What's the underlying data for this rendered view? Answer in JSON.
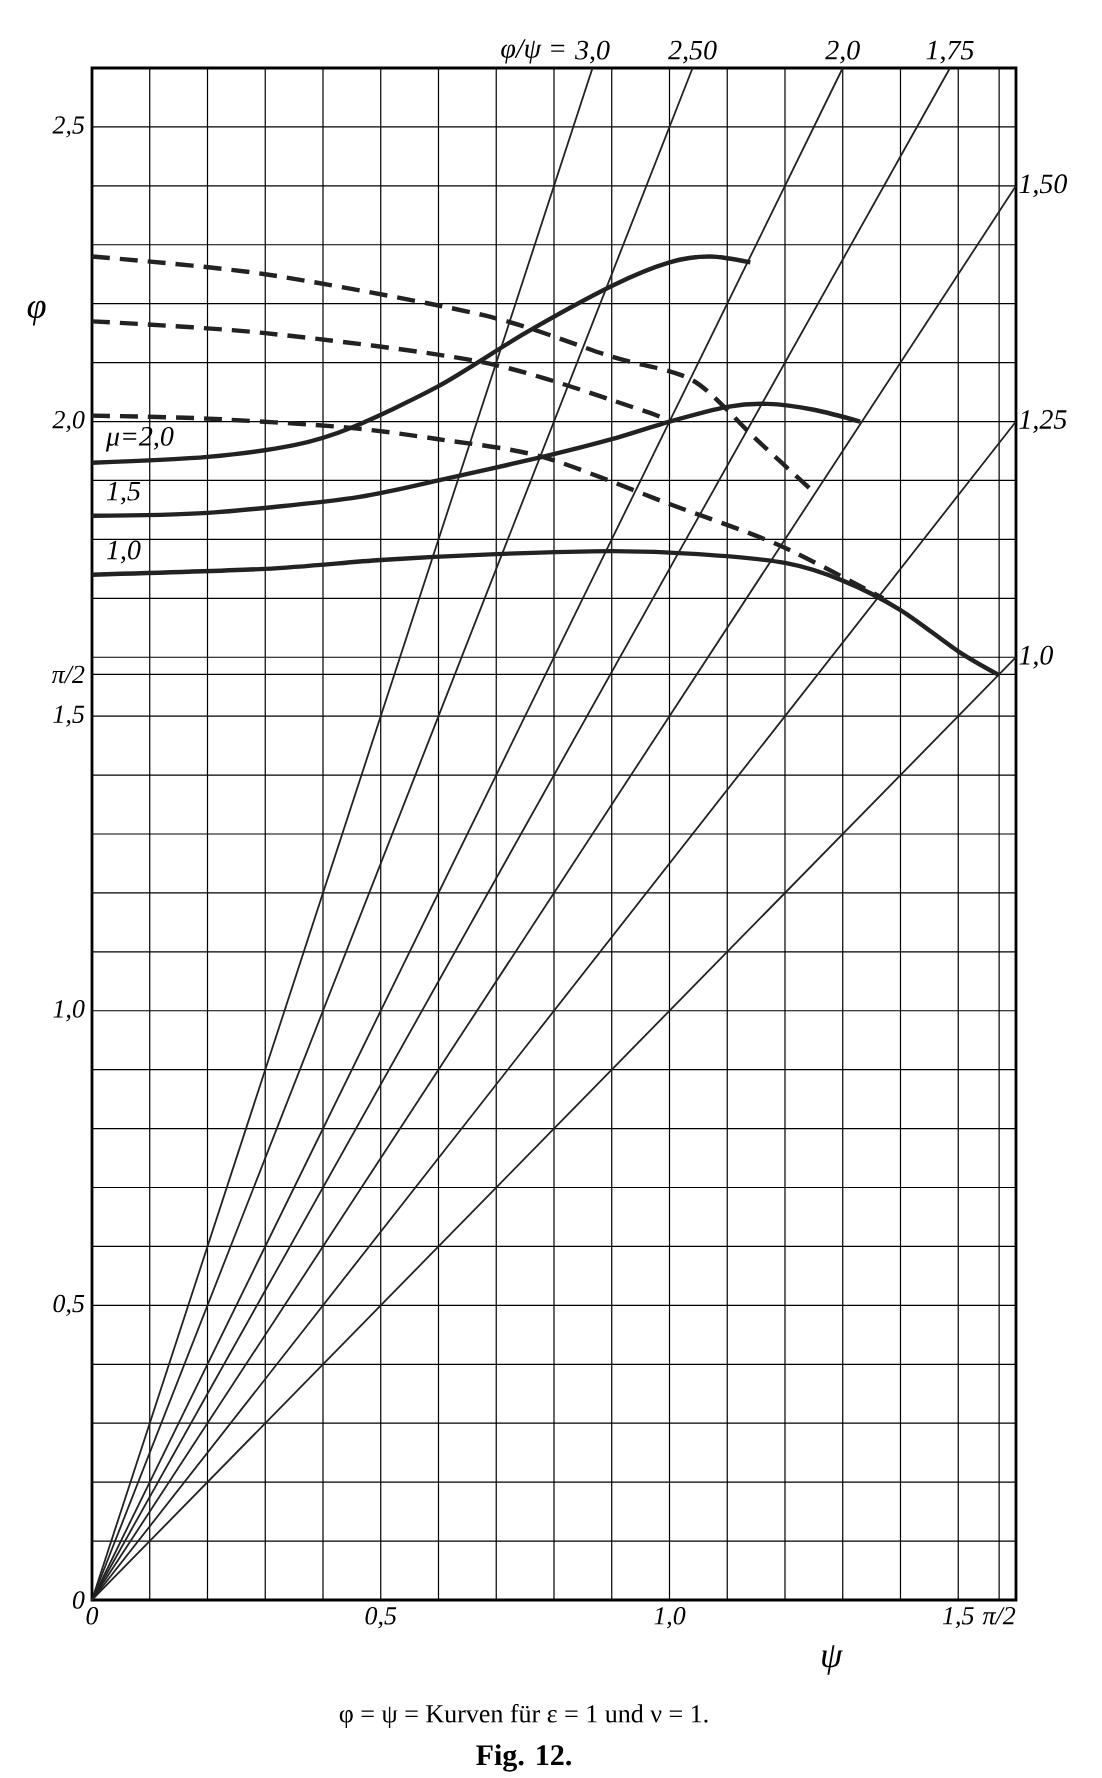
{
  "chart_data": {
    "type": "line",
    "legend_title": "φ/ψ =",
    "xlabel": "ψ",
    "ylabel": "φ",
    "xlim": [
      0,
      1.6
    ],
    "ylim": [
      0,
      2.6
    ],
    "grid": true,
    "xticks": [
      0,
      {
        "value": 0.1,
        "label": null
      },
      {
        "value": 0.2,
        "label": null
      },
      {
        "value": 0.3,
        "label": null
      },
      {
        "value": 0.4,
        "label": null
      },
      {
        "value": 0.5,
        "label": "0,5"
      },
      {
        "value": 0.6,
        "label": null
      },
      {
        "value": 0.7,
        "label": null
      },
      {
        "value": 0.8,
        "label": null
      },
      {
        "value": 0.9,
        "label": null
      },
      {
        "value": 1.0,
        "label": "1,0"
      },
      {
        "value": 1.1,
        "label": null
      },
      {
        "value": 1.2,
        "label": null
      },
      {
        "value": 1.3,
        "label": null
      },
      {
        "value": 1.4,
        "label": null
      },
      {
        "value": 1.5,
        "label": "1,5"
      },
      {
        "value": 1.5708,
        "label": "π/2"
      }
    ],
    "yticks": [
      0,
      {
        "value": 0.1,
        "label": null
      },
      {
        "value": 0.2,
        "label": null
      },
      {
        "value": 0.3,
        "label": null
      },
      {
        "value": 0.4,
        "label": null
      },
      {
        "value": 0.5,
        "label": "0,5"
      },
      {
        "value": 0.6,
        "label": null
      },
      {
        "value": 0.7,
        "label": null
      },
      {
        "value": 0.8,
        "label": null
      },
      {
        "value": 0.9,
        "label": null
      },
      {
        "value": 1.0,
        "label": "1,0"
      },
      {
        "value": 1.1,
        "label": null
      },
      {
        "value": 1.2,
        "label": null
      },
      {
        "value": 1.3,
        "label": null
      },
      {
        "value": 1.4,
        "label": null
      },
      {
        "value": 1.5,
        "label": "1,5"
      },
      {
        "value": 1.5708,
        "label": "π/2"
      },
      {
        "value": 1.6,
        "label": null
      },
      {
        "value": 1.7,
        "label": null
      },
      {
        "value": 1.8,
        "label": null
      },
      {
        "value": 1.9,
        "label": null
      },
      {
        "value": 2.0,
        "label": "2,0"
      },
      {
        "value": 2.1,
        "label": null
      },
      {
        "value": 2.2,
        "label": null
      },
      {
        "value": 2.3,
        "label": null
      },
      {
        "value": 2.4,
        "label": null
      },
      {
        "value": 2.5,
        "label": "2,5"
      }
    ],
    "series": [
      {
        "name": "3,0",
        "color": "#222222",
        "x": [
          0,
          0.8667
        ],
        "values": [
          0,
          2.6
        ]
      },
      {
        "name": "2,50",
        "color": "#222222",
        "x": [
          0,
          1.04
        ],
        "values": [
          0,
          2.6
        ]
      },
      {
        "name": "2,0",
        "color": "#222222",
        "x": [
          0,
          1.3
        ],
        "values": [
          0,
          2.6
        ]
      },
      {
        "name": "1,75",
        "color": "#222222",
        "x": [
          0,
          1.4857
        ],
        "values": [
          0,
          2.6
        ]
      },
      {
        "name": "1,50",
        "color": "#222222",
        "x": [
          0,
          1.6
        ],
        "values": [
          0,
          2.4
        ]
      },
      {
        "name": "1,25",
        "color": "#222222",
        "x": [
          0,
          1.6
        ],
        "values": [
          0,
          2.0
        ]
      },
      {
        "name": "1,0",
        "color": "#222222",
        "x": [
          0,
          1.6
        ],
        "values": [
          0,
          1.6
        ]
      },
      {
        "name": "μ=2,0",
        "color": "#222222",
        "x": [
          0,
          0.2,
          0.35,
          0.45,
          0.6,
          0.75,
          0.9,
          1.0,
          1.07,
          1.14
        ],
        "values": [
          1.93,
          1.94,
          1.96,
          1.99,
          2.06,
          2.15,
          2.23,
          2.27,
          2.28,
          2.27
        ]
      },
      {
        "name": "1,5",
        "color": "#222222",
        "x": [
          0,
          0.2,
          0.45,
          0.6,
          0.78,
          0.9,
          1.0,
          1.1,
          1.17,
          1.25,
          1.33
        ],
        "values": [
          1.84,
          1.845,
          1.87,
          1.9,
          1.94,
          1.97,
          2.0,
          2.025,
          2.03,
          2.02,
          2.0
        ]
      },
      {
        "name": "1,0",
        "color": "#222222",
        "x": [
          0,
          0.3,
          0.5,
          0.7,
          0.9,
          1.05,
          1.2,
          1.3,
          1.4,
          1.5,
          1.57
        ],
        "values": [
          1.74,
          1.75,
          1.765,
          1.775,
          1.78,
          1.775,
          1.76,
          1.73,
          1.68,
          1.61,
          1.57
        ]
      },
      {
        "color": "#222222",
        "line_style": "dashed",
        "x": [
          0,
          0.3,
          0.68,
          0.9,
          1.04,
          1.15,
          1.25
        ],
        "values": [
          2.28,
          2.25,
          2.18,
          2.11,
          2.07,
          1.97,
          1.88
        ]
      },
      {
        "color": "#222222",
        "line_style": "dashed",
        "x": [
          0,
          0.3,
          0.68,
          0.95,
          1.0
        ],
        "values": [
          2.17,
          2.15,
          2.1,
          2.02,
          2.0
        ]
      },
      {
        "color": "#222222",
        "line_style": "dashed",
        "x": [
          0,
          0.2,
          0.44,
          0.6,
          0.78,
          1.0,
          1.19,
          1.37
        ],
        "values": [
          2.01,
          2.005,
          1.99,
          1.97,
          1.94,
          1.86,
          1.79,
          1.7
        ]
      }
    ],
    "annotations": [
      "φ = ψ = Kurven für ε = 1 und ν = 1.",
      "Fig. 12."
    ]
  }
}
